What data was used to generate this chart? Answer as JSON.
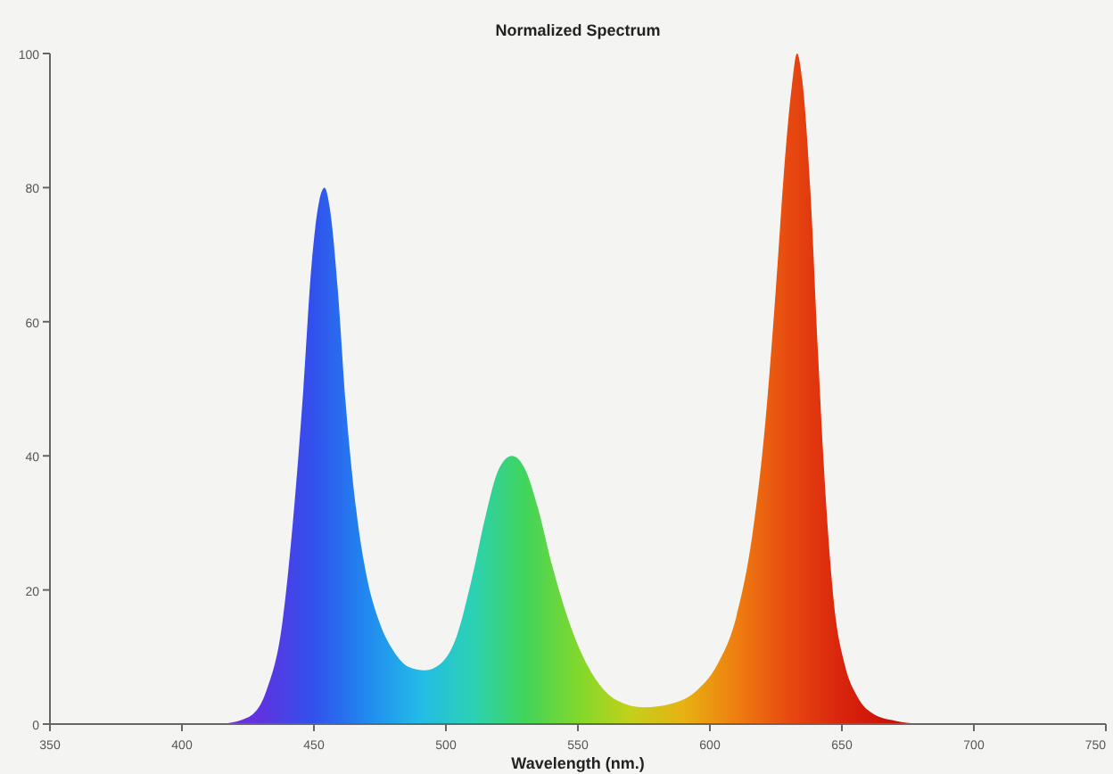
{
  "chart_data": {
    "type": "area",
    "title": "Normalized Spectrum",
    "xlabel": "Wavelength (nm.)",
    "xlim": [
      350,
      750
    ],
    "xticks": [
      350,
      400,
      450,
      500,
      550,
      600,
      650,
      700,
      750
    ],
    "ylim": [
      0,
      100
    ],
    "yticks": [
      0,
      20,
      40,
      60,
      80,
      100
    ],
    "grid": false,
    "series": [
      {
        "x": [
          415,
          425,
          432,
          438,
          442,
          446,
          449,
          452,
          454,
          456,
          459,
          462,
          466,
          470,
          475,
          480,
          486,
          492,
          498,
          504,
          510,
          515,
          520,
          525,
          530,
          535,
          540,
          546,
          552,
          558,
          565,
          575,
          585,
          595,
          603,
          610,
          616,
          621,
          625,
          628,
          631,
          633,
          635,
          638,
          641,
          644,
          647,
          651,
          656,
          662,
          670,
          680
        ],
        "values": [
          0,
          1,
          5,
          15,
          30,
          50,
          68,
          78,
          80,
          77,
          65,
          48,
          32,
          22,
          15,
          11,
          8.5,
          8,
          9,
          13,
          22,
          31,
          38,
          40,
          38,
          32,
          24,
          16,
          10,
          6,
          3.5,
          2.5,
          3,
          5,
          9,
          16,
          28,
          45,
          65,
          82,
          95,
          100,
          96,
          80,
          55,
          33,
          18,
          9,
          4,
          1.5,
          0.5,
          0
        ]
      }
    ]
  }
}
